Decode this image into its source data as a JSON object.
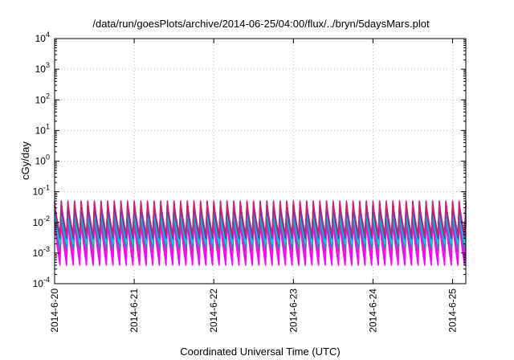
{
  "chart_data": {
    "type": "line",
    "title": "/data/run/goesPlots/archive/2014-06-25/04:00/flux/../bryn/5daysMars.plot",
    "xlabel": "Coordinated Universal Time (UTC)",
    "ylabel": "cGy/day",
    "y_scale": "log",
    "ylim": [
      0.0001,
      10000
    ],
    "xlim": [
      "2014-06-20 00:00",
      "2014-06-25 04:00"
    ],
    "grid": true,
    "legend": "none",
    "x_ticks": [
      "2014-6-20",
      "2014-6-21",
      "2014-6-22",
      "2014-6-23",
      "2014-6-24",
      "2014-6-25"
    ],
    "y_ticks": [
      {
        "base": "10",
        "exp": "-4",
        "value": 0.0001
      },
      {
        "base": "10",
        "exp": "-3",
        "value": 0.001
      },
      {
        "base": "10",
        "exp": "-2",
        "value": 0.01
      },
      {
        "base": "10",
        "exp": "-1",
        "value": 0.1
      },
      {
        "base": "10",
        "exp": "0",
        "value": 1
      },
      {
        "base": "10",
        "exp": "1",
        "value": 10
      },
      {
        "base": "10",
        "exp": "2",
        "value": 100
      },
      {
        "base": "10",
        "exp": "3",
        "value": 1000
      },
      {
        "base": "10",
        "exp": "4",
        "value": 10000
      }
    ],
    "cycle_hours": 2,
    "series": [
      {
        "color": "#ff00ff",
        "peak": 0.012,
        "trough": 0.0004
      },
      {
        "color": "#ff00ff",
        "peak": 0.01,
        "trough": 0.0006
      },
      {
        "color": "#dd22cc",
        "peak": 0.015,
        "trough": 0.0009
      },
      {
        "color": "#00a0a0",
        "peak": 0.02,
        "trough": 0.0015
      },
      {
        "color": "#00d0d0",
        "peak": 0.025,
        "trough": 0.002
      },
      {
        "color": "#2244ff",
        "peak": 0.035,
        "trough": 0.003
      },
      {
        "color": "#3355cc",
        "peak": 0.045,
        "trough": 0.004
      },
      {
        "color": "#cc2266",
        "peak": 0.05,
        "trough": 0.0035
      }
    ]
  }
}
